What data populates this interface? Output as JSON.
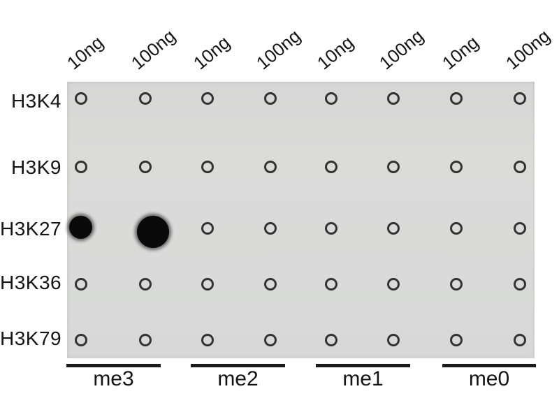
{
  "figure": {
    "kind": "dot-blot-assay",
    "row_labels": [
      "H3K4",
      "H3K9",
      "H3K27",
      "H3K36",
      "H3K79"
    ],
    "column_labels": [
      "10ng",
      "100ng",
      "10ng",
      "100ng",
      "10ng",
      "100ng",
      "10ng",
      "100ng"
    ],
    "groups": [
      {
        "label": "me3",
        "columns": [
          "10ng",
          "100ng"
        ]
      },
      {
        "label": "me2",
        "columns": [
          "10ng",
          "100ng"
        ]
      },
      {
        "label": "me1",
        "columns": [
          "10ng",
          "100ng"
        ]
      },
      {
        "label": "me0",
        "columns": [
          "10ng",
          "100ng"
        ]
      }
    ],
    "spot_matrix": [
      [
        "neg",
        "neg",
        "neg",
        "neg",
        "neg",
        "neg",
        "neg",
        "neg"
      ],
      [
        "neg",
        "neg",
        "neg",
        "neg",
        "neg",
        "neg",
        "neg",
        "neg"
      ],
      [
        "strong",
        "very_strong",
        "neg",
        "neg",
        "neg",
        "neg",
        "neg",
        "neg"
      ],
      [
        "neg",
        "neg",
        "neg",
        "neg",
        "neg",
        "neg",
        "neg",
        "neg"
      ],
      [
        "neg",
        "neg",
        "neg",
        "neg",
        "neg",
        "neg",
        "neg",
        "neg"
      ]
    ],
    "signal_diameters": {
      "strong": 33,
      "very_strong": 46
    },
    "positive_signals": [
      {
        "row": "H3K27",
        "group": "me3",
        "amount": "10ng",
        "intensity": "strong"
      },
      {
        "row": "H3K27",
        "group": "me3",
        "amount": "100ng",
        "intensity": "very_strong"
      }
    ],
    "colors": {
      "membrane": "#d9dad9",
      "spot_ring": "#333333",
      "positive_dot": "#0a0a0a",
      "text": "#141414"
    }
  }
}
